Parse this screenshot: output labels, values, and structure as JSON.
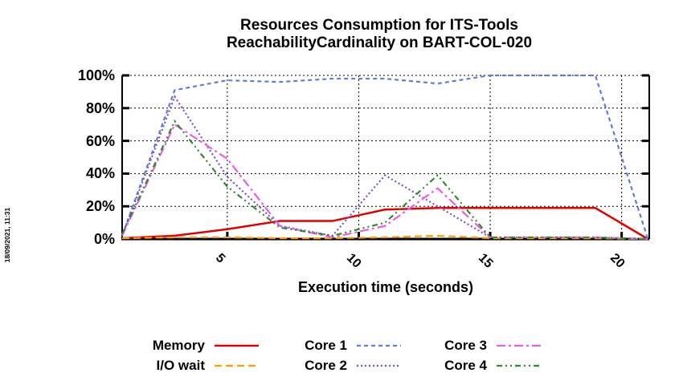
{
  "page": {
    "background": "#ffffff",
    "date_stamp": "18/09/2021, 11:31"
  },
  "chart_data": {
    "type": "line",
    "title_line1": "Resources Consumption for ITS-Tools",
    "title_line2": "ReachabilityCardinality on BART-COL-020",
    "xlabel": "Execution time (seconds)",
    "ylabel": "",
    "x_range": [
      1,
      21.05
    ],
    "y_range": [
      0,
      100
    ],
    "x_ticks": [
      5,
      10,
      15,
      20
    ],
    "y_ticks": [
      0,
      20,
      40,
      60,
      80,
      100
    ],
    "y_tick_suffix": "%",
    "grid": "dotted",
    "legend_position": "bottom",
    "axis_color": "#000000",
    "x": [
      1,
      3,
      5,
      7,
      9,
      11,
      13,
      15,
      17,
      19,
      21
    ],
    "series": [
      {
        "name": "Memory",
        "color": "#e10000",
        "dash": "solid",
        "values": [
          0.5,
          2,
          6,
          11,
          11,
          18,
          19,
          19,
          19,
          19,
          0
        ]
      },
      {
        "name": "I/O wait",
        "color": "#ff9c00",
        "dash": "dashed",
        "values": [
          0.5,
          1,
          1,
          0.5,
          0.5,
          1,
          2,
          0.5,
          0.5,
          0.5,
          0
        ]
      },
      {
        "name": "Core 1",
        "color": "#5b7ede",
        "dash": "dashed-small",
        "values": [
          2,
          91,
          97,
          96,
          98,
          98,
          95,
          100,
          100,
          100,
          0
        ]
      },
      {
        "name": "Core 2",
        "color": "#7d4fd6",
        "dash": "dotted",
        "values": [
          2,
          87,
          38,
          8,
          2,
          39,
          20,
          1,
          1,
          1,
          0
        ]
      },
      {
        "name": "Core 3",
        "color": "#ee5ce0",
        "dash": "dash-dot",
        "values": [
          2,
          70,
          49,
          8,
          1,
          8,
          31,
          1,
          1,
          1,
          0
        ]
      },
      {
        "name": "Core 4",
        "color": "#2e8b2e",
        "dash": "dash-dot-dot",
        "values": [
          3,
          72,
          32,
          7,
          2,
          10,
          39,
          1,
          1,
          1,
          0
        ]
      }
    ]
  }
}
